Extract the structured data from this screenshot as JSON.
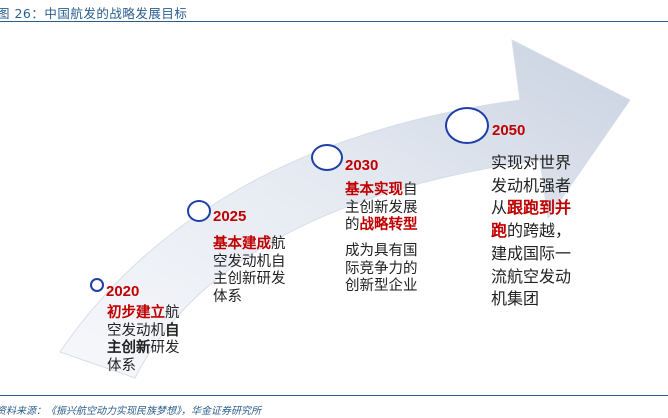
{
  "header": {
    "caption": "图 26：中国航发的战略发展目标"
  },
  "footer": {
    "source": "资料来源：《振兴航空动力实现民族梦想》，华金证券研究所"
  },
  "milestones": [
    {
      "year": "2020",
      "lines": [
        [
          {
            "t": "初步建立",
            "s": "hl"
          },
          {
            "t": "航",
            "s": ""
          }
        ],
        [
          {
            "t": "空发动机",
            "s": ""
          },
          {
            "t": "自",
            "s": "bold"
          }
        ],
        [
          {
            "t": "主创新",
            "s": "bold"
          },
          {
            "t": "研发",
            "s": ""
          }
        ],
        [
          {
            "t": "体系",
            "s": ""
          }
        ]
      ]
    },
    {
      "year": "2025",
      "lines": [
        [
          {
            "t": "基本建成",
            "s": "hl"
          },
          {
            "t": "航",
            "s": ""
          }
        ],
        [
          {
            "t": "空发动机自",
            "s": ""
          }
        ],
        [
          {
            "t": "主创新研发",
            "s": ""
          }
        ],
        [
          {
            "t": "体系",
            "s": ""
          }
        ]
      ]
    },
    {
      "year": "2030",
      "lines": [
        [
          {
            "t": "基本实现",
            "s": "hl"
          },
          {
            "t": "自",
            "s": ""
          }
        ],
        [
          {
            "t": "主创新发展",
            "s": ""
          }
        ],
        [
          {
            "t": "的",
            "s": ""
          },
          {
            "t": "战略转型",
            "s": "hl"
          }
        ],
        [
          {
            "t": "成为具有国",
            "s": "gap"
          }
        ],
        [
          {
            "t": "际竞争力的",
            "s": ""
          }
        ],
        [
          {
            "t": "创新型企业",
            "s": ""
          }
        ]
      ]
    },
    {
      "year": "2050",
      "lines": [
        [
          {
            "t": "实现对世界",
            "s": ""
          }
        ],
        [
          {
            "t": "发动机强者",
            "s": ""
          }
        ],
        [
          {
            "t": "从",
            "s": ""
          },
          {
            "t": "跟跑到并",
            "s": "hl"
          }
        ],
        [
          {
            "t": "跑",
            "s": "hl"
          },
          {
            "t": "的跨越，",
            "s": ""
          }
        ],
        [
          {
            "t": "建成国际一",
            "s": ""
          }
        ],
        [
          {
            "t": "流航空发动",
            "s": ""
          }
        ],
        [
          {
            "t": "机集团",
            "s": ""
          }
        ]
      ]
    }
  ],
  "colors": {
    "arrow_light": "#f4f6fa",
    "arrow_dark": "#cdd5e3",
    "circle_border": "#1f3fa8",
    "highlight": "#c00000",
    "frame": "#2b5d8c"
  }
}
